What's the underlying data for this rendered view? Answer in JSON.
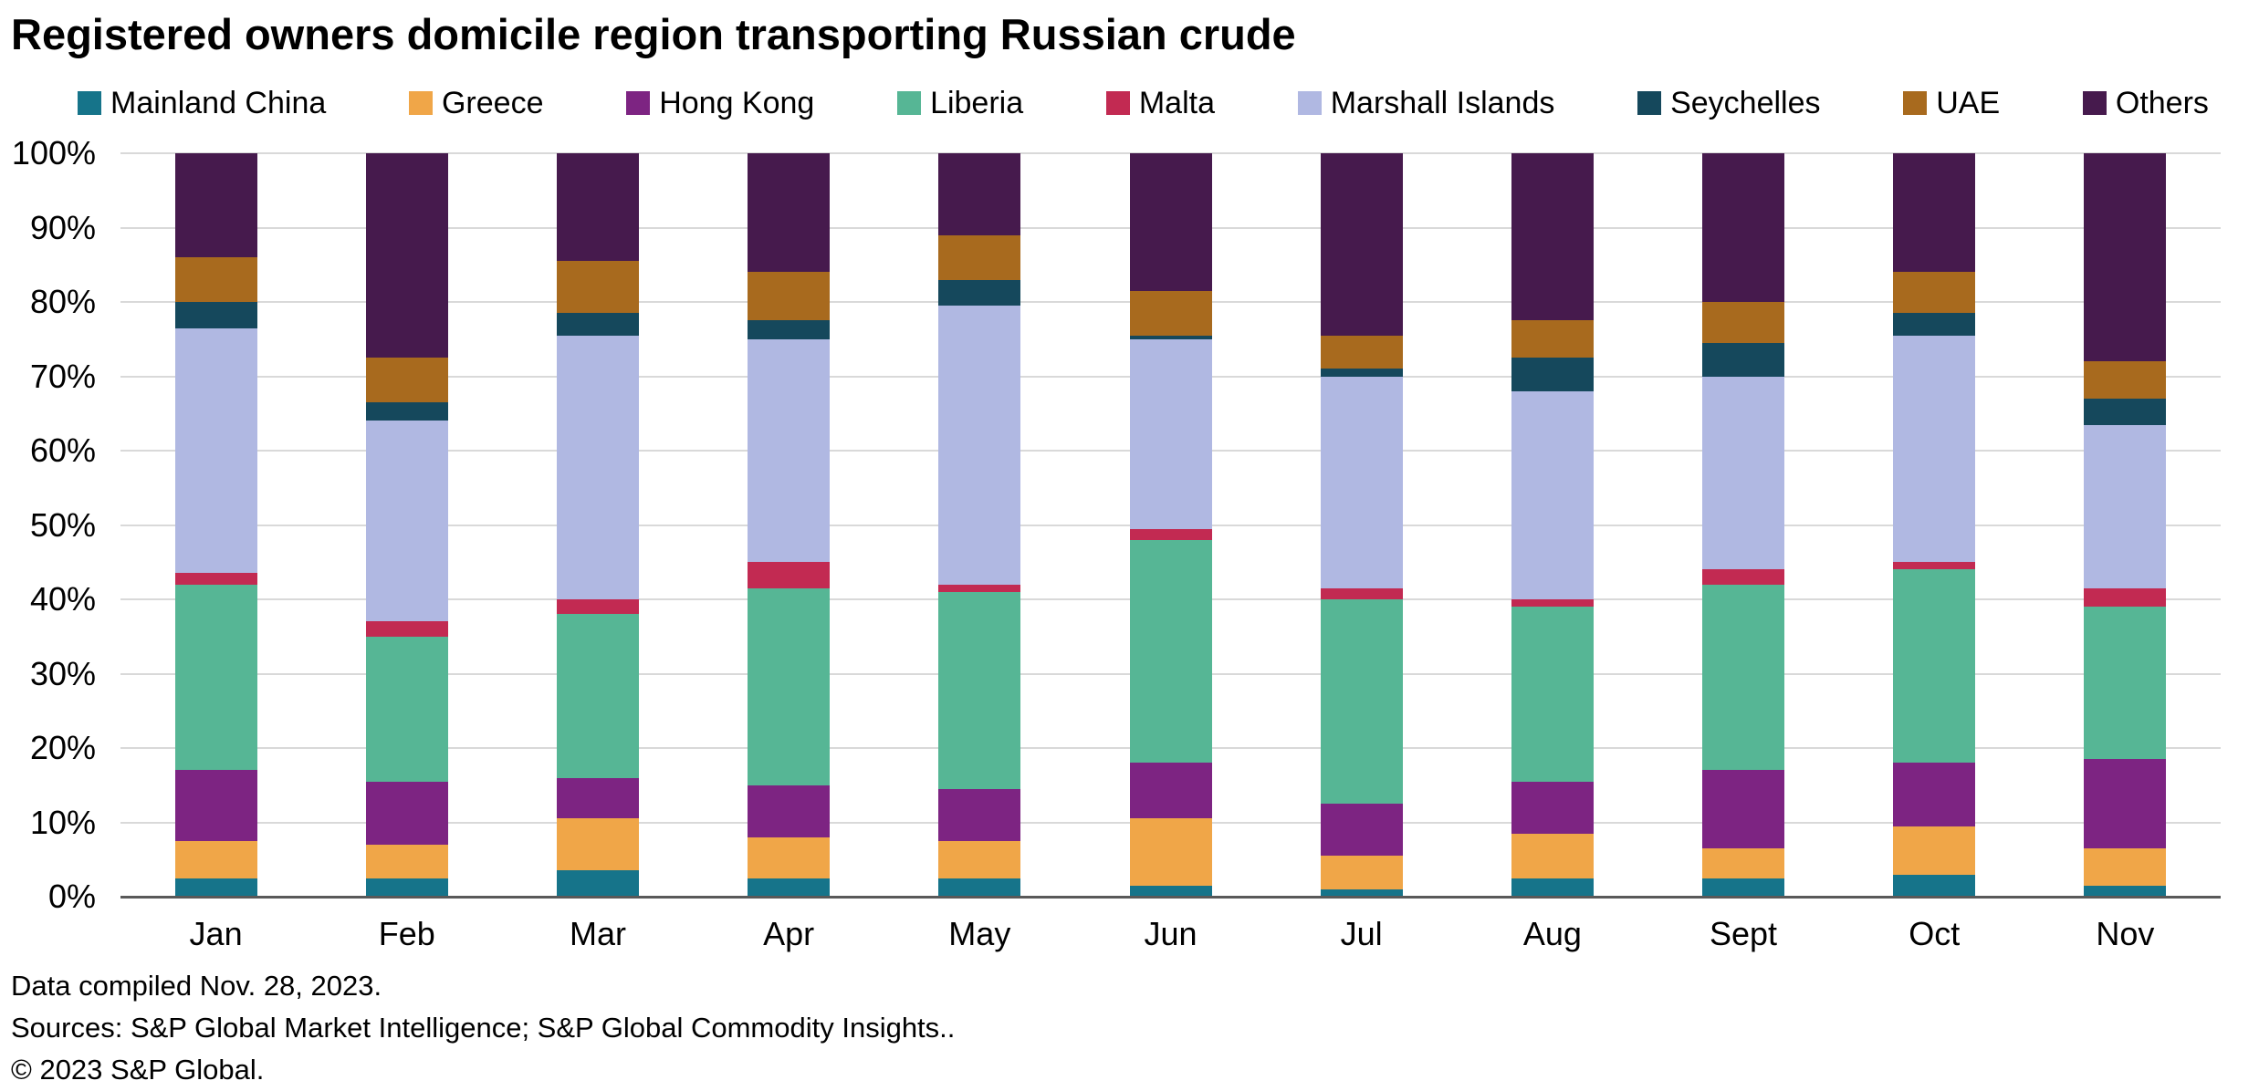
{
  "title": "Registered owners domicile region transporting Russian crude",
  "footer": {
    "compiled": "Data compiled Nov. 28, 2023.",
    "sources": "Sources: S&P Global Market Intelligence; S&P Global Commodity Insights..",
    "copyright": "© 2023 S&P Global."
  },
  "chart_data": {
    "type": "bar",
    "stacked": true,
    "title": "Registered owners domicile region transporting Russian crude",
    "xlabel": "",
    "ylabel": "",
    "ylim": [
      0,
      100
    ],
    "grid": true,
    "legend_position": "top",
    "yticks": [
      "0%",
      "10%",
      "20%",
      "30%",
      "40%",
      "50%",
      "60%",
      "70%",
      "80%",
      "90%",
      "100%"
    ],
    "categories": [
      "Jan",
      "Feb",
      "Mar",
      "Apr",
      "May",
      "Jun",
      "Jul",
      "Aug",
      "Sept",
      "Oct",
      "Nov"
    ],
    "series": [
      {
        "name": "Mainland China",
        "color": "#16748a",
        "values": [
          2.5,
          2.5,
          3.5,
          2.5,
          2.5,
          1.5,
          1,
          2.5,
          2.5,
          3,
          1.5
        ]
      },
      {
        "name": "Greece",
        "color": "#f0a648",
        "values": [
          5,
          4.5,
          7,
          5.5,
          5,
          9,
          4.5,
          6,
          4,
          6.5,
          5
        ]
      },
      {
        "name": "Hong Kong",
        "color": "#7d2482",
        "values": [
          9.5,
          8.5,
          5.5,
          7,
          7,
          7.5,
          7,
          7,
          10.5,
          8.5,
          12
        ]
      },
      {
        "name": "Liberia",
        "color": "#56b695",
        "values": [
          25,
          19.5,
          22,
          26.5,
          26.5,
          30,
          27.5,
          23.5,
          25,
          26,
          20.5
        ]
      },
      {
        "name": "Malta",
        "color": "#c22a52",
        "values": [
          1.5,
          2,
          2,
          3.5,
          1,
          1.5,
          1.5,
          1,
          2,
          1,
          2.5
        ]
      },
      {
        "name": "Marshall Islands",
        "color": "#b0b8e2",
        "values": [
          33,
          27,
          35.5,
          30,
          37.5,
          25.5,
          28.5,
          28,
          26,
          30.5,
          22
        ]
      },
      {
        "name": "Seychelles",
        "color": "#15485c",
        "values": [
          3.5,
          2.5,
          3,
          2.5,
          3.5,
          0.5,
          1,
          4.5,
          4.5,
          3,
          3.5
        ]
      },
      {
        "name": "UAE",
        "color": "#a86a1e",
        "values": [
          6,
          6,
          7,
          6.5,
          6,
          6,
          4.5,
          5,
          5.5,
          5.5,
          5
        ]
      },
      {
        "name": "Others",
        "color": "#461a4d",
        "values": [
          14,
          27.5,
          14.5,
          16,
          11,
          18.5,
          24.5,
          22.5,
          20,
          16,
          28
        ]
      }
    ]
  }
}
